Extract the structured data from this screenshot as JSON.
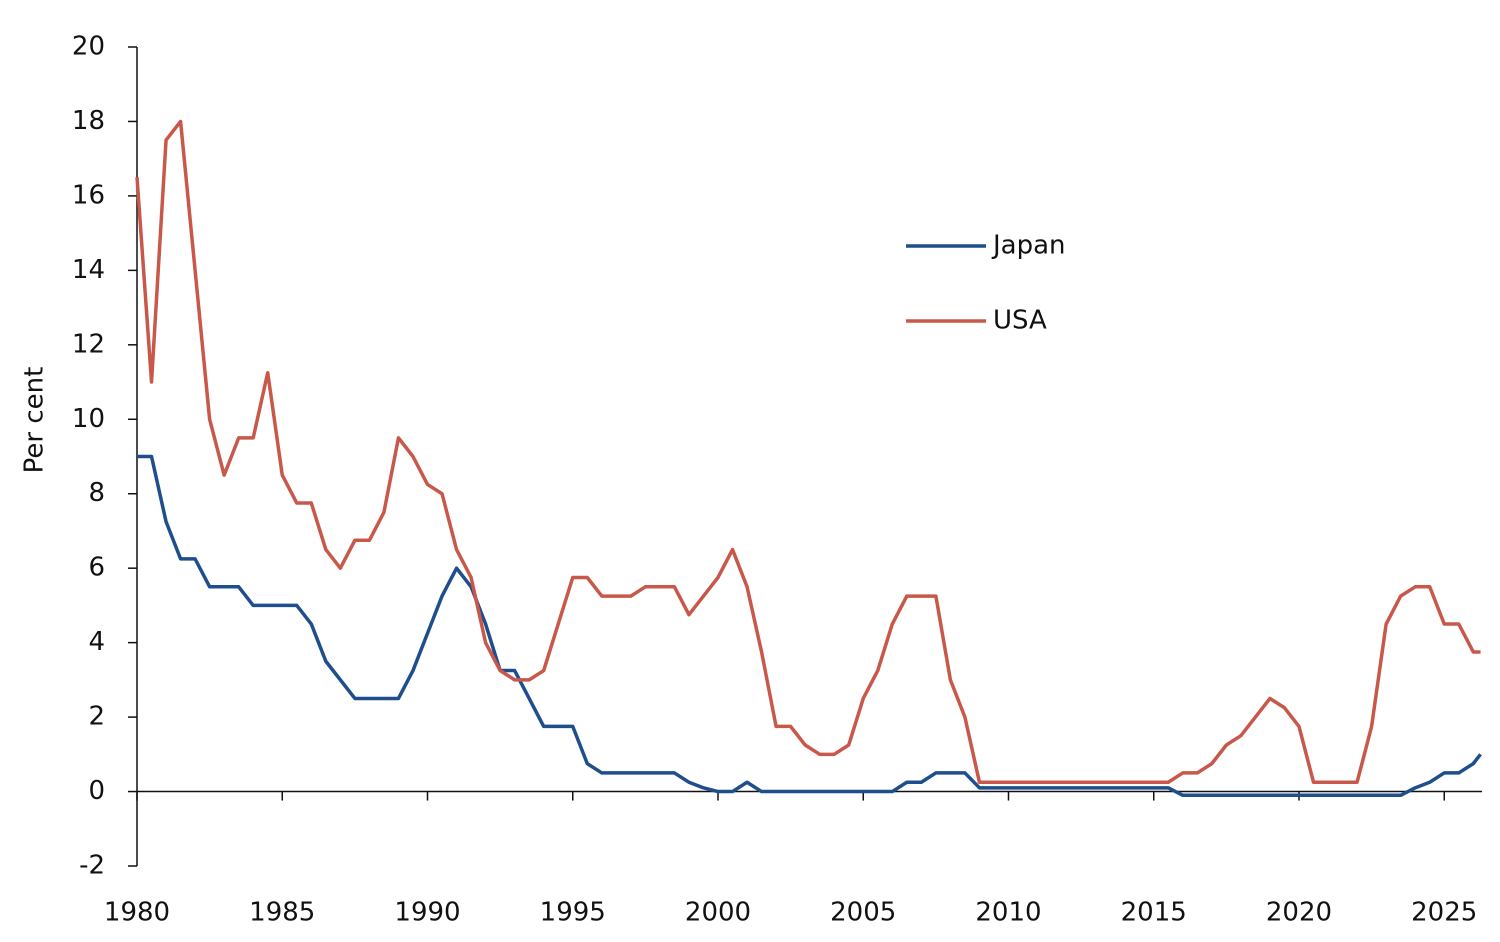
{
  "chart_data": {
    "type": "line",
    "y_label": "Per cent",
    "x": [
      1980,
      1980.5,
      1981,
      1981.5,
      1982,
      1982.5,
      1983,
      1983.5,
      1984,
      1984.5,
      1985,
      1985.5,
      1986,
      1986.5,
      1987,
      1987.5,
      1988,
      1988.5,
      1989,
      1989.5,
      1990,
      1990.5,
      1991,
      1991.5,
      1992,
      1992.5,
      1993,
      1993.5,
      1994,
      1994.5,
      1995,
      1995.5,
      1996,
      1996.5,
      1997,
      1997.5,
      1998,
      1998.5,
      1999,
      1999.5,
      2000,
      2000.5,
      2001,
      2001.5,
      2002,
      2002.5,
      2003,
      2003.5,
      2004,
      2004.5,
      2005,
      2005.5,
      2006,
      2006.5,
      2007,
      2007.5,
      2008,
      2008.5,
      2009,
      2009.5,
      2010,
      2010.5,
      2011,
      2011.5,
      2012,
      2012.5,
      2013,
      2013.5,
      2014,
      2014.5,
      2015,
      2015.5,
      2016,
      2016.5,
      2017,
      2017.5,
      2018,
      2018.5,
      2019,
      2019.5,
      2020,
      2020.5,
      2021,
      2021.5,
      2022,
      2022.5,
      2023,
      2023.5,
      2024,
      2024.5,
      2025,
      2025.5,
      2026,
      2026.25
    ],
    "series": [
      {
        "name": "Japan",
        "color": "#1f4e8c",
        "values": [
          9,
          9,
          7.25,
          6.25,
          6.25,
          5.5,
          5.5,
          5.5,
          5,
          5,
          5,
          5,
          4.5,
          3.5,
          3,
          2.5,
          2.5,
          2.5,
          2.5,
          3.25,
          4.25,
          5.25,
          6,
          5.5,
          4.5,
          3.25,
          3.25,
          2.5,
          1.75,
          1.75,
          1.75,
          0.75,
          0.5,
          0.5,
          0.5,
          0.5,
          0.5,
          0.5,
          0.25,
          0.1,
          0,
          0,
          0.25,
          0,
          0,
          0,
          0,
          0,
          0,
          0,
          0,
          0,
          0,
          0.25,
          0.25,
          0.5,
          0.5,
          0.5,
          0.1,
          0.1,
          0.1,
          0.1,
          0.1,
          0.1,
          0.1,
          0.1,
          0.1,
          0.1,
          0.1,
          0.1,
          0.1,
          0.1,
          -0.1,
          -0.1,
          -0.1,
          -0.1,
          -0.1,
          -0.1,
          -0.1,
          -0.1,
          -0.1,
          -0.1,
          -0.1,
          -0.1,
          -0.1,
          -0.1,
          -0.1,
          -0.1,
          0.1,
          0.25,
          0.5,
          0.5,
          0.75,
          1
        ]
      },
      {
        "name": "USA",
        "color": "#c8584a",
        "values": [
          16.5,
          11,
          17.5,
          18,
          14,
          10,
          8.5,
          9.5,
          9.5,
          11.25,
          8.5,
          7.75,
          7.75,
          6.5,
          6,
          6.75,
          6.75,
          7.5,
          9.5,
          9,
          8.25,
          8,
          6.5,
          5.75,
          4,
          3.25,
          3,
          3,
          3.25,
          4.5,
          5.75,
          5.75,
          5.25,
          5.25,
          5.25,
          5.5,
          5.5,
          5.5,
          4.75,
          5.25,
          5.75,
          6.5,
          5.5,
          3.75,
          1.75,
          1.75,
          1.25,
          1,
          1,
          1.25,
          2.5,
          3.25,
          4.5,
          5.25,
          5.25,
          5.25,
          3,
          2,
          0.25,
          0.25,
          0.25,
          0.25,
          0.25,
          0.25,
          0.25,
          0.25,
          0.25,
          0.25,
          0.25,
          0.25,
          0.25,
          0.25,
          0.5,
          0.5,
          0.75,
          1.25,
          1.5,
          2,
          2.5,
          2.25,
          1.75,
          0.25,
          0.25,
          0.25,
          0.25,
          1.75,
          4.5,
          5.25,
          5.5,
          5.5,
          4.5,
          4.5,
          3.75,
          3.75
        ]
      }
    ],
    "xlim": [
      1980,
      2026.3
    ],
    "xticks": [
      1980,
      1985,
      1990,
      1995,
      2000,
      2005,
      2010,
      2015,
      2020,
      2025
    ],
    "ylim": [
      -2,
      20
    ],
    "yticks": [
      -2,
      0,
      2,
      4,
      6,
      8,
      10,
      12,
      14,
      16,
      18,
      20
    ],
    "grid": false,
    "legend": "center-right"
  }
}
